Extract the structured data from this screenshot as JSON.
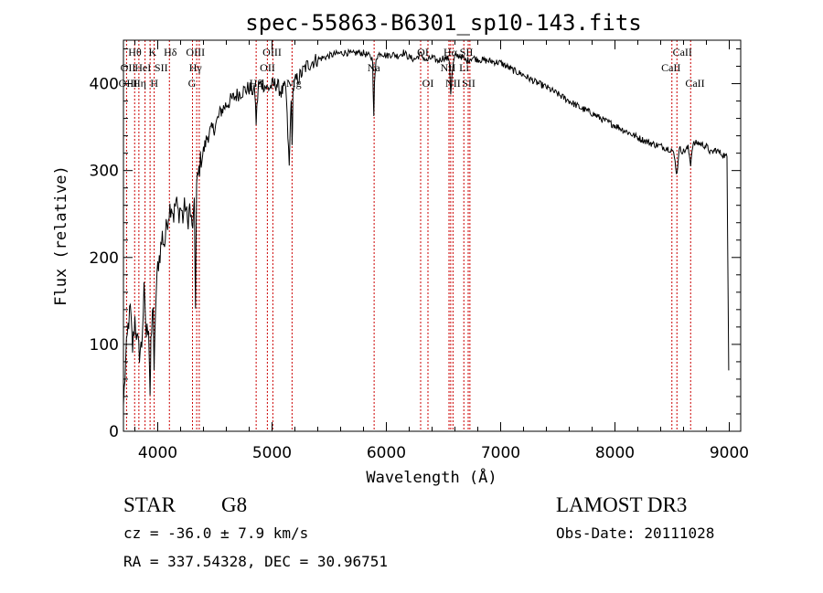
{
  "chart_data": {
    "type": "line",
    "title": "spec-55863-B6301_sp10-143.fits",
    "xlabel": "Wavelength (Å)",
    "ylabel": "Flux (relative)",
    "xlim": [
      3700,
      9100
    ],
    "ylim": [
      0,
      450
    ],
    "xticks": [
      4000,
      5000,
      6000,
      7000,
      8000,
      9000
    ],
    "yticks": [
      0,
      100,
      200,
      300,
      400
    ],
    "series": [
      {
        "x": [
          3700,
          3720,
          3740,
          3760,
          3780,
          3800,
          3820,
          3840,
          3860,
          3880,
          3900,
          3920,
          3933,
          3940,
          3960,
          3968,
          3980,
          4000,
          4020,
          4040,
          4060,
          4080,
          4100,
          4120,
          4140,
          4160,
          4180,
          4200,
          4220,
          4240,
          4260,
          4280,
          4300,
          4320,
          4330,
          4340,
          4360,
          4380,
          4400,
          4430,
          4460,
          4500,
          4550,
          4600,
          4650,
          4700,
          4750,
          4800,
          4850,
          4861,
          4880,
          4920,
          4960,
          5000,
          5040,
          5080,
          5120,
          5150,
          5167,
          5175,
          5183,
          5200,
          5250,
          5300,
          5350,
          5400,
          5450,
          5500,
          5550,
          5600,
          5650,
          5700,
          5750,
          5800,
          5850,
          5880,
          5890,
          5896,
          5910,
          5950,
          6000,
          6050,
          6100,
          6150,
          6200,
          6250,
          6300,
          6350,
          6400,
          6450,
          6500,
          6550,
          6563,
          6580,
          6600,
          6650,
          6700,
          6750,
          6800,
          6900,
          7000,
          7100,
          7200,
          7300,
          7400,
          7500,
          7600,
          7700,
          7800,
          7900,
          8000,
          8100,
          8200,
          8300,
          8400,
          8450,
          8500,
          8520,
          8542,
          8560,
          8600,
          8640,
          8662,
          8680,
          8720,
          8760,
          8800,
          8840,
          8880,
          8900,
          8950,
          8980,
          8995
        ],
        "y": [
          30,
          80,
          120,
          140,
          95,
          130,
          105,
          90,
          100,
          160,
          110,
          125,
          45,
          95,
          150,
          60,
          140,
          190,
          205,
          225,
          215,
          240,
          255,
          262,
          248,
          265,
          250,
          258,
          245,
          262,
          240,
          258,
          232,
          255,
          150,
          280,
          300,
          315,
          322,
          338,
          345,
          350,
          368,
          376,
          382,
          388,
          392,
          395,
          390,
          356,
          398,
          400,
          394,
          398,
          400,
          390,
          396,
          304,
          388,
          325,
          392,
          402,
          410,
          420,
          425,
          428,
          430,
          432,
          434,
          435,
          436,
          434,
          436,
          435,
          432,
          428,
          360,
          398,
          430,
          436,
          432,
          434,
          432,
          436,
          430,
          428,
          434,
          426,
          430,
          426,
          430,
          428,
          390,
          418,
          432,
          432,
          426,
          430,
          428,
          426,
          424,
          416,
          410,
          402,
          396,
          388,
          380,
          372,
          366,
          358,
          352,
          345,
          338,
          332,
          328,
          326,
          324,
          315,
          295,
          325,
          322,
          326,
          308,
          330,
          332,
          330,
          328,
          320,
          324,
          322,
          318,
          315,
          70
        ],
        "color": "#000000"
      }
    ],
    "annotation_lines": {
      "color": "#cc0000",
      "positions": [
        3727,
        3798,
        3835,
        3889,
        3933,
        3969,
        4102,
        4304,
        4341,
        4363,
        4861,
        4959,
        5007,
        5175,
        5893,
        6300,
        6364,
        6548,
        6563,
        6583,
        6678,
        6716,
        6731,
        8498,
        8542,
        8662
      ]
    },
    "line_labels": [
      {
        "text": "Hθ",
        "x": 3800,
        "row": 1
      },
      {
        "text": "K",
        "x": 3955,
        "row": 1
      },
      {
        "text": "Hδ",
        "x": 4110,
        "row": 1
      },
      {
        "text": "OIII",
        "x": 4330,
        "row": 1
      },
      {
        "text": "OIII",
        "x": 5000,
        "row": 1
      },
      {
        "text": "OI",
        "x": 6320,
        "row": 1
      },
      {
        "text": "Hα",
        "x": 6560,
        "row": 1
      },
      {
        "text": "SII",
        "x": 6700,
        "row": 1
      },
      {
        "text": "CaII",
        "x": 8590,
        "row": 1
      },
      {
        "text": "OII",
        "x": 3740,
        "row": 2
      },
      {
        "text": "HeI",
        "x": 3870,
        "row": 2
      },
      {
        "text": "SII",
        "x": 4030,
        "row": 2
      },
      {
        "text": "Hγ",
        "x": 4330,
        "row": 2
      },
      {
        "text": "OII",
        "x": 4960,
        "row": 2
      },
      {
        "text": "Na",
        "x": 5890,
        "row": 2
      },
      {
        "text": "NII",
        "x": 6540,
        "row": 2
      },
      {
        "text": "Li",
        "x": 6680,
        "row": 2
      },
      {
        "text": "CaII",
        "x": 8490,
        "row": 2
      },
      {
        "text": "OIII",
        "x": 3740,
        "row": 3
      },
      {
        "text": "Hη",
        "x": 3840,
        "row": 3
      },
      {
        "text": "H",
        "x": 3970,
        "row": 3
      },
      {
        "text": "G",
        "x": 4300,
        "row": 3
      },
      {
        "text": "Hβ",
        "x": 4861,
        "row": 3
      },
      {
        "text": "Mg",
        "x": 5190,
        "row": 3
      },
      {
        "text": "OI",
        "x": 6364,
        "row": 3
      },
      {
        "text": "NII",
        "x": 6583,
        "row": 3
      },
      {
        "text": "SII",
        "x": 6720,
        "row": 3
      },
      {
        "text": "CaII",
        "x": 8700,
        "row": 3
      }
    ]
  },
  "info": {
    "class_label": "STAR",
    "subclass": "G8",
    "survey": "LAMOST DR3",
    "cz": "cz = -36.0 ± 7.9 km/s",
    "obs_date": "Obs-Date: 20111028",
    "coords": "RA = 337.54328, DEC =  30.96751"
  }
}
